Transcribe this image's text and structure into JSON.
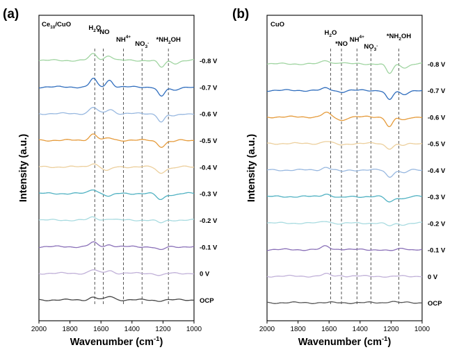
{
  "chart_data": [
    {
      "type": "line",
      "panel_label": "(a)",
      "sample_label": {
        "base": "Ce",
        "sub": "10",
        "rest": "/CuO"
      },
      "xlabel": {
        "base": "Wavenumber (cm",
        "sup": "-1",
        "end": ")"
      },
      "ylabel": "Intensity (a.u.)",
      "xlim": [
        2000,
        1000
      ],
      "x_ticks": [
        "2000",
        "1800",
        "1600",
        "1400",
        "1200",
        "1000"
      ],
      "x_tick_values": [
        2000,
        1800,
        1600,
        1400,
        1200,
        1000
      ],
      "reference_lines": [
        {
          "x": 1640,
          "label": {
            "base": "H",
            "sub": "2",
            "rest": "O",
            "sup": ""
          }
        },
        {
          "x": 1585,
          "label": {
            "base": "*NO",
            "sub": "",
            "rest": "",
            "sup": ""
          }
        },
        {
          "x": 1455,
          "label": {
            "base": "NH",
            "sub": "",
            "rest": "",
            "sup": "4+"
          }
        },
        {
          "x": 1335,
          "label": {
            "base": "NO",
            "sub": "3",
            "rest": "",
            "sup": "-"
          }
        },
        {
          "x": 1165,
          "label": {
            "base": "*NH",
            "sub": "2",
            "rest": "OH",
            "sup": ""
          }
        }
      ],
      "series": [
        {
          "name": "-0.8 V",
          "color": "#9fd4a0",
          "features": [
            [
              1650,
              9
            ],
            [
              1550,
              7
            ],
            [
              1210,
              -10
            ],
            [
              1120,
              -4
            ]
          ]
        },
        {
          "name": "-0.7 V",
          "color": "#2f6dbd",
          "features": [
            [
              1650,
              12
            ],
            [
              1545,
              10
            ],
            [
              1210,
              -14
            ],
            [
              1130,
              -5
            ]
          ]
        },
        {
          "name": "-0.6 V",
          "color": "#98b8e0",
          "features": [
            [
              1650,
              9
            ],
            [
              1540,
              6
            ],
            [
              1210,
              -12
            ],
            [
              1130,
              -4
            ]
          ]
        },
        {
          "name": "-0.5 V",
          "color": "#e59a39",
          "features": [
            [
              1650,
              9
            ],
            [
              1545,
              3
            ],
            [
              1210,
              -9
            ],
            [
              1140,
              -2
            ]
          ]
        },
        {
          "name": "-0.4 V",
          "color": "#eccf9c",
          "features": [
            [
              1650,
              5
            ],
            [
              1560,
              -6
            ],
            [
              1215,
              -9
            ],
            [
              1140,
              -2
            ]
          ]
        },
        {
          "name": "-0.3 V",
          "color": "#4fb1c2",
          "features": [
            [
              1650,
              6
            ],
            [
              1545,
              -4
            ],
            [
              1215,
              -9
            ],
            [
              1130,
              -2
            ]
          ]
        },
        {
          "name": "-0.2 V",
          "color": "#a8dbe0",
          "features": [
            [
              1650,
              4
            ],
            [
              1545,
              2
            ],
            [
              1215,
              -4
            ]
          ]
        },
        {
          "name": "-0.1 V",
          "color": "#8a70b8",
          "features": [
            [
              1650,
              6
            ],
            [
              1545,
              3
            ],
            [
              1215,
              -5
            ]
          ]
        },
        {
          "name": "0  V",
          "color": "#c0b0d8",
          "features": [
            [
              1650,
              5
            ],
            [
              1545,
              4
            ],
            [
              1215,
              -3
            ]
          ]
        },
        {
          "name": "OCP",
          "color": "#444444",
          "features": [
            [
              1650,
              4
            ],
            [
              1540,
              5
            ],
            [
              1230,
              -1
            ]
          ]
        }
      ]
    },
    {
      "type": "line",
      "panel_label": "(b)",
      "sample_label": {
        "base": "CuO",
        "sub": "",
        "rest": ""
      },
      "xlabel": {
        "base": "Wavenumber (cm",
        "sup": "-1",
        "end": ")"
      },
      "ylabel": "Intensity (a.u.)",
      "xlim": [
        2000,
        1000
      ],
      "x_ticks": [
        "2000",
        "1800",
        "1600",
        "1400",
        "1200",
        "1000"
      ],
      "x_tick_values": [
        2000,
        1800,
        1600,
        1400,
        1200,
        1000
      ],
      "reference_lines": [
        {
          "x": 1590,
          "label": {
            "base": "H",
            "sub": "2",
            "rest": "O",
            "sup": ""
          }
        },
        {
          "x": 1520,
          "label": {
            "base": "*NO",
            "sub": "",
            "rest": "",
            "sup": ""
          }
        },
        {
          "x": 1420,
          "label": {
            "base": "NH",
            "sub": "",
            "rest": "",
            "sup": "4+"
          }
        },
        {
          "x": 1330,
          "label": {
            "base": "NO",
            "sub": "3",
            "rest": "",
            "sup": "-"
          }
        },
        {
          "x": 1150,
          "label": {
            "base": "*NH",
            "sub": "2",
            "rest": "OH",
            "sup": ""
          }
        }
      ],
      "series": [
        {
          "name": "-0.8 V",
          "color": "#9fd4a0",
          "features": [
            [
              1620,
              5
            ],
            [
              1530,
              2
            ],
            [
              1210,
              -14
            ],
            [
              1110,
              -5
            ]
          ]
        },
        {
          "name": "-0.7 V",
          "color": "#2f6dbd",
          "features": [
            [
              1620,
              3
            ],
            [
              1520,
              -2
            ],
            [
              1210,
              -14
            ],
            [
              1120,
              -6
            ]
          ]
        },
        {
          "name": "-0.6 V",
          "color": "#e59a39",
          "features": [
            [
              1620,
              6
            ],
            [
              1520,
              -5
            ],
            [
              1210,
              -14
            ],
            [
              1120,
              -5
            ]
          ]
        },
        {
          "name": "-0.5 V",
          "color": "#eccf9c",
          "features": [
            [
              1620,
              3
            ],
            [
              1520,
              -2
            ],
            [
              1210,
              -7
            ],
            [
              1120,
              -3
            ]
          ]
        },
        {
          "name": "-0.4 V",
          "color": "#98b8e0",
          "features": [
            [
              1620,
              4
            ],
            [
              1520,
              -2
            ],
            [
              1210,
              -10
            ],
            [
              1120,
              -4
            ]
          ]
        },
        {
          "name": "-0.3 V",
          "color": "#4fb1c2",
          "features": [
            [
              1620,
              4
            ],
            [
              1520,
              -2
            ],
            [
              1210,
              -8
            ],
            [
              1120,
              -3
            ]
          ]
        },
        {
          "name": "-0.2 V",
          "color": "#a8dbe0",
          "features": [
            [
              1620,
              3
            ],
            [
              1520,
              -1
            ],
            [
              1210,
              -4
            ],
            [
              1120,
              -2
            ]
          ]
        },
        {
          "name": "-0.1 V",
          "color": "#8a70b8",
          "features": [
            [
              1620,
              5
            ],
            [
              1530,
              1
            ],
            [
              1210,
              -2
            ],
            [
              1120,
              2
            ]
          ]
        },
        {
          "name": "0  V",
          "color": "#c0b0d8",
          "features": [
            [
              1620,
              3
            ],
            [
              1530,
              1
            ],
            [
              1210,
              -1
            ]
          ]
        },
        {
          "name": "OCP",
          "color": "#555555",
          "features": [
            [
              1200,
              2
            ]
          ]
        }
      ]
    }
  ]
}
